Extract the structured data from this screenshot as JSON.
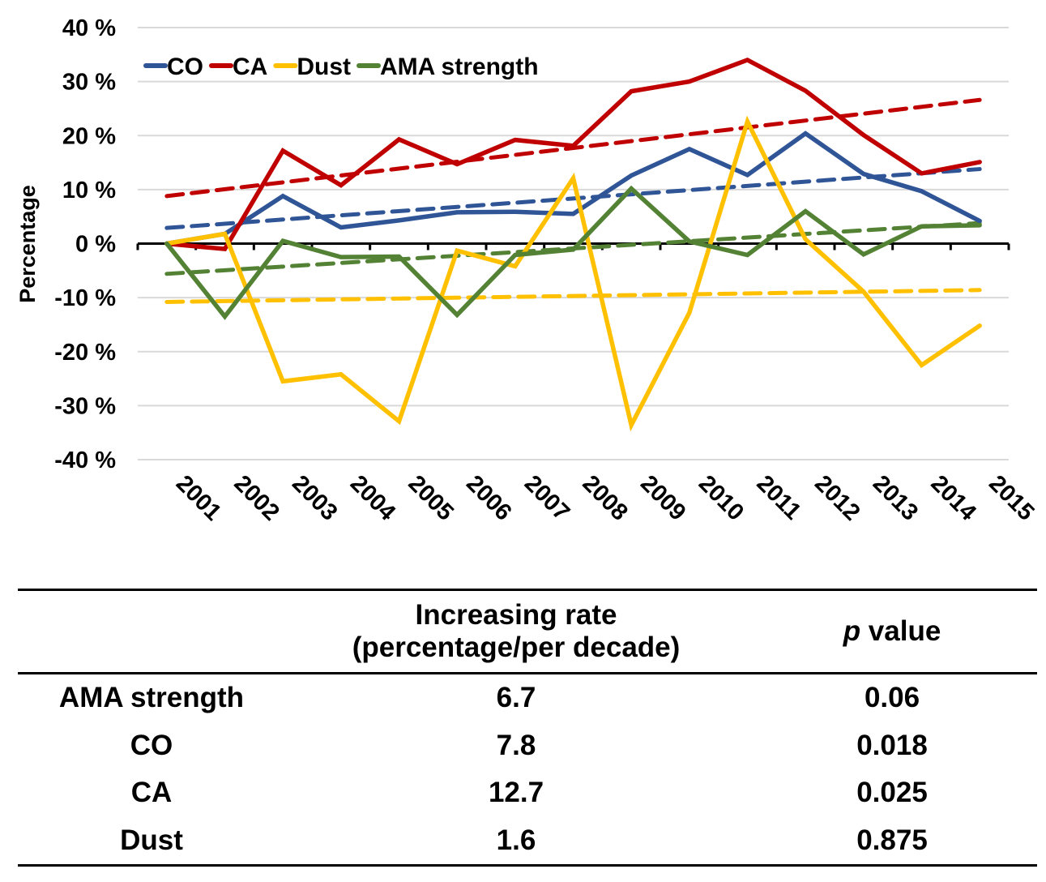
{
  "chart_data": {
    "type": "line",
    "title": "",
    "xlabel": "",
    "ylabel": "Percentage",
    "ylim": [
      -40,
      40
    ],
    "yticks": [
      40,
      30,
      20,
      10,
      0,
      -10,
      -20,
      -30,
      -40
    ],
    "ytick_labels": [
      "40 %",
      "30 %",
      "20 %",
      "10 %",
      "0 %",
      "-10 %",
      "-20 %",
      "-30 %",
      "-40 %"
    ],
    "grid": true,
    "legend_position": "top-left",
    "categories": [
      "2001",
      "2002",
      "2003",
      "2004",
      "2005",
      "2006",
      "2007",
      "2008",
      "2009",
      "2010",
      "2011",
      "2012",
      "2013",
      "2014",
      "2015"
    ],
    "series": [
      {
        "name": "CO",
        "color": "#2f5597",
        "values": [
          0,
          1.8,
          8.8,
          3.0,
          4.3,
          5.8,
          5.9,
          5.5,
          12.6,
          17.5,
          12.7,
          20.4,
          12.9,
          9.7,
          4.2
        ],
        "trend": [
          2.9,
          13.8
        ]
      },
      {
        "name": "CA",
        "color": "#c00000",
        "values": [
          0,
          -1.0,
          17.2,
          10.8,
          19.3,
          14.7,
          19.2,
          18.1,
          28.2,
          30.0,
          34.0,
          28.3,
          20.1,
          13.0,
          15.1
        ],
        "trend": [
          8.8,
          26.6
        ]
      },
      {
        "name": "Dust",
        "color": "#ffc000",
        "values": [
          0,
          1.8,
          -25.5,
          -24.2,
          -32.9,
          -1.3,
          -4.2,
          12.1,
          -33.6,
          -12.8,
          22.6,
          0.8,
          -8.9,
          -22.5,
          -15.2
        ],
        "trend": [
          -10.8,
          -8.6
        ]
      },
      {
        "name": "AMA strength",
        "color": "#548235",
        "values": [
          0,
          -13.5,
          0.5,
          -2.5,
          -2.4,
          -13.2,
          -2.1,
          -1.1,
          10.2,
          0.4,
          -2.1,
          6.0,
          -2.0,
          3.2,
          3.4
        ],
        "trend": [
          -5.6,
          3.8
        ]
      }
    ]
  },
  "table": {
    "headers": {
      "name": "",
      "rate_line1": "Increasing rate",
      "rate_line2": "(percentage/per decade)",
      "p_italic": "p",
      "p_rest": " value"
    },
    "rows": [
      {
        "name": "AMA strength",
        "rate": "6.7",
        "p": "0.06"
      },
      {
        "name": "CO",
        "rate": "7.8",
        "p": "0.018"
      },
      {
        "name": "CA",
        "rate": "12.7",
        "p": "0.025"
      },
      {
        "name": "Dust",
        "rate": "1.6",
        "p": "0.875"
      }
    ]
  }
}
